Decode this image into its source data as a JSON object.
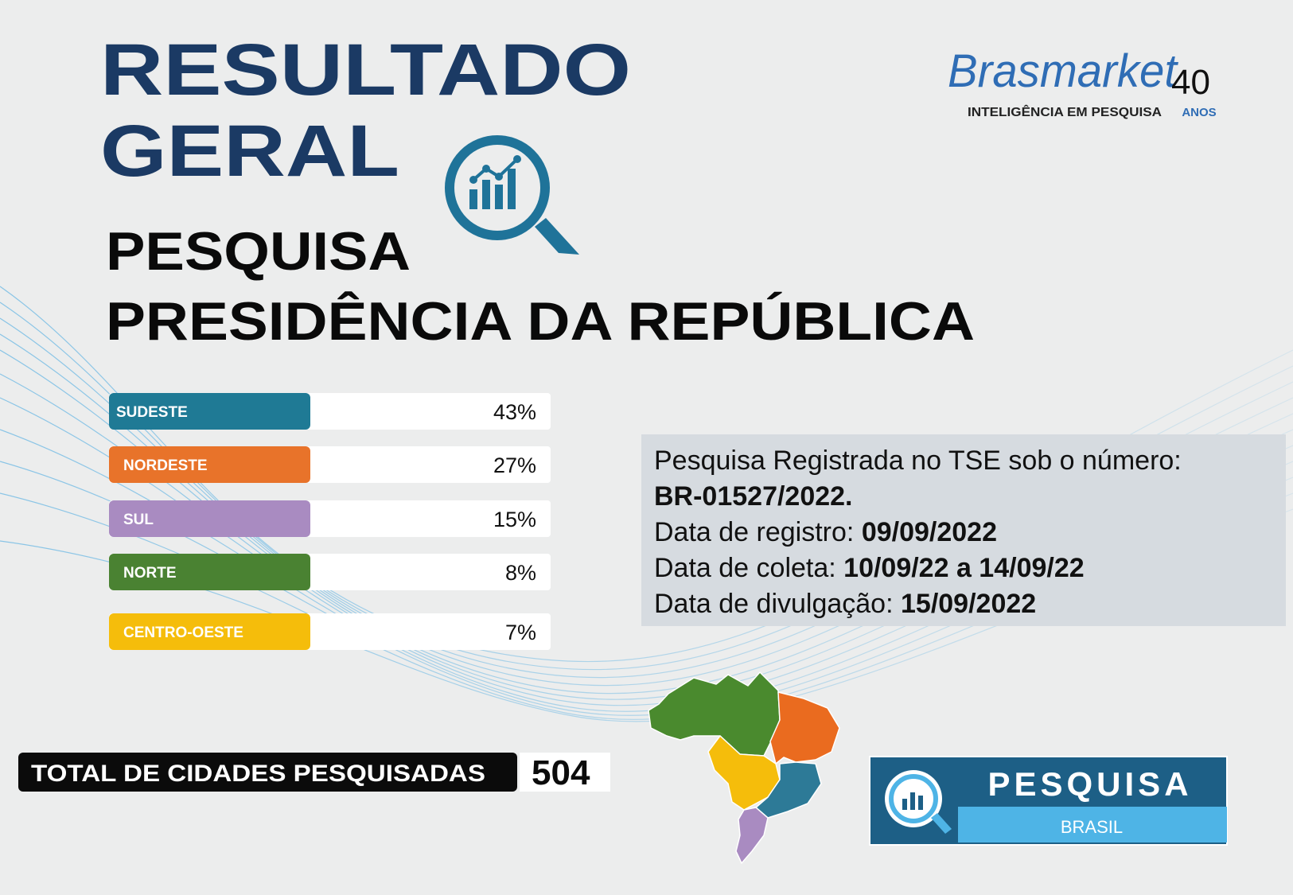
{
  "header": {
    "title_line1": "RESULTADO",
    "title_line2": "GERAL",
    "subtitle_line1": "PESQUISA",
    "subtitle_line2": "PRESIDÊNCIA DA REPÚBLICA"
  },
  "logo": {
    "brand": "Brasmarket",
    "years": "40",
    "tagline": "INTELIGÊNCIA EM PESQUISA",
    "years_label": "ANOS"
  },
  "regions": [
    {
      "name": "SUDESTE",
      "value": "43%",
      "color": "#1f7a95"
    },
    {
      "name": "NORDESTE",
      "value": "27%",
      "color": "#e8732a"
    },
    {
      "name": "SUL",
      "value": "15%",
      "color": "#a98bc1"
    },
    {
      "name": "NORTE",
      "value": "8%",
      "color": "#4a8232"
    },
    {
      "name": "CENTRO-OESTE",
      "value": "7%",
      "color": "#f5bd0b"
    }
  ],
  "info": {
    "line1": "Pesquisa Registrada no TSE sob o número:",
    "registration_number": "BR-01527/2022.",
    "registration_date_label": "Data de registro:",
    "registration_date": "09/09/2022",
    "collection_label": "Data de coleta:",
    "collection_period": "10/09/22 a 14/09/22",
    "release_label": "Data de divulgação:",
    "release_date": "15/09/2022"
  },
  "total": {
    "label": "TOTAL DE CIDADES PESQUISADAS",
    "value": "504"
  },
  "badge": {
    "title": "PESQUISA",
    "subtitle": "BRASIL"
  }
}
